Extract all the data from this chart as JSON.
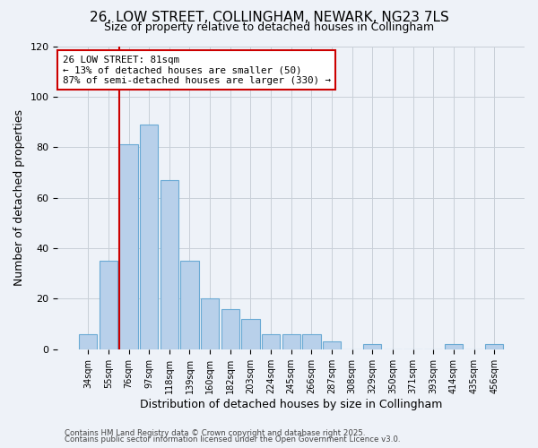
{
  "title": "26, LOW STREET, COLLINGHAM, NEWARK, NG23 7LS",
  "subtitle": "Size of property relative to detached houses in Collingham",
  "xlabel": "Distribution of detached houses by size in Collingham",
  "ylabel": "Number of detached properties",
  "bin_labels": [
    "34sqm",
    "55sqm",
    "76sqm",
    "97sqm",
    "118sqm",
    "139sqm",
    "160sqm",
    "182sqm",
    "203sqm",
    "224sqm",
    "245sqm",
    "266sqm",
    "287sqm",
    "308sqm",
    "329sqm",
    "350sqm",
    "371sqm",
    "393sqm",
    "414sqm",
    "435sqm",
    "456sqm"
  ],
  "bar_values": [
    6,
    35,
    81,
    89,
    67,
    35,
    20,
    16,
    12,
    6,
    6,
    6,
    3,
    0,
    2,
    0,
    0,
    0,
    2,
    0,
    2
  ],
  "bar_color": "#b8d0ea",
  "bar_edge_color": "#6aaad4",
  "vline_color": "#cc0000",
  "annotation_title": "26 LOW STREET: 81sqm",
  "annotation_line1": "← 13% of detached houses are smaller (50)",
  "annotation_line2": "87% of semi-detached houses are larger (330) →",
  "annotation_box_color": "#ffffff",
  "annotation_box_edge": "#cc0000",
  "ylim": [
    0,
    120
  ],
  "yticks": [
    0,
    20,
    40,
    60,
    80,
    100,
    120
  ],
  "background_color": "#eef2f8",
  "grid_color": "#c8cfd8",
  "footer1": "Contains HM Land Registry data © Crown copyright and database right 2025.",
  "footer2": "Contains public sector information licensed under the Open Government Licence v3.0."
}
